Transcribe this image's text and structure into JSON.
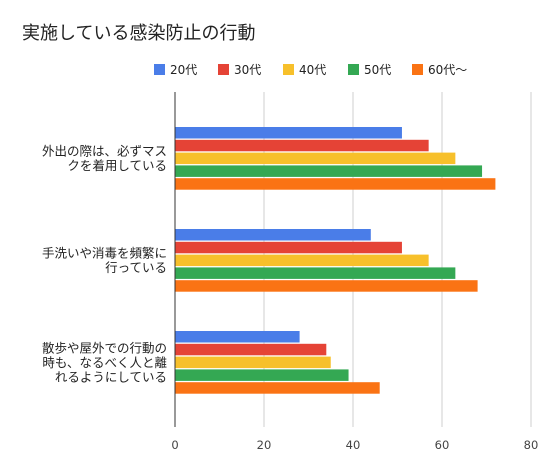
{
  "chart_data": {
    "type": "bar",
    "orientation": "horizontal",
    "title": "実施している感染防止の行動",
    "xlabel": "",
    "ylabel": "",
    "xlim": [
      0,
      80
    ],
    "x_ticks": [
      "0",
      "20",
      "40",
      "60",
      "80"
    ],
    "grid": true,
    "legend_position": "top",
    "categories": [
      [
        "外出の際は、必ずマス",
        "クを着用している"
      ],
      [
        "手洗いや消毒を頻繁に",
        "行っている"
      ],
      [
        "散歩や屋外での行動の",
        "時も、なるべく人と離",
        "れるようにしている"
      ]
    ],
    "series": [
      {
        "name": "20代",
        "color": "#4a7de8",
        "values": [
          51,
          44,
          28
        ]
      },
      {
        "name": "30代",
        "color": "#e54336",
        "values": [
          57,
          51,
          34
        ]
      },
      {
        "name": "40代",
        "color": "#f7c02b",
        "values": [
          63,
          57,
          35
        ]
      },
      {
        "name": "50代",
        "color": "#34a853",
        "values": [
          69,
          63,
          39
        ]
      },
      {
        "name": "60代〜",
        "color": "#fa7314",
        "values": [
          72,
          68,
          46
        ]
      }
    ]
  }
}
